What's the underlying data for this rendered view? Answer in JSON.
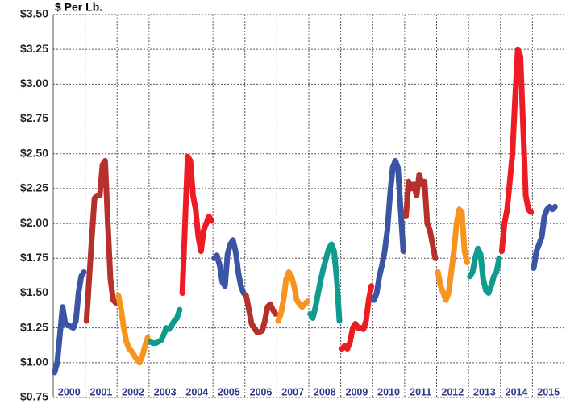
{
  "chart_data": {
    "type": "line",
    "y_label": "$ Per Lb.",
    "ylim": [
      0.75,
      3.5
    ],
    "yticks": [
      {
        "value": 0.75,
        "label": "$0.75"
      },
      {
        "value": 1.0,
        "label": "$1.00"
      },
      {
        "value": 1.25,
        "label": "$1.25"
      },
      {
        "value": 1.5,
        "label": "$1.50"
      },
      {
        "value": 1.75,
        "label": "$1.75"
      },
      {
        "value": 2.0,
        "label": "$2.00"
      },
      {
        "value": 2.25,
        "label": "$2.25"
      },
      {
        "value": 2.5,
        "label": "$2.50"
      },
      {
        "value": 2.75,
        "label": "$2.75"
      },
      {
        "value": 3.0,
        "label": "$3.00"
      },
      {
        "value": 3.25,
        "label": "$3.25"
      },
      {
        "value": 3.5,
        "label": "$3.50"
      }
    ],
    "grid": true,
    "series": [
      {
        "name": "2000",
        "color": "#3a55a4",
        "values": [
          0.93,
          1.0,
          1.2,
          1.4,
          1.28,
          1.27,
          1.26,
          1.25,
          1.3,
          1.5,
          1.62,
          1.65
        ]
      },
      {
        "name": "2001",
        "color": "#b7312c",
        "values": [
          1.3,
          1.6,
          1.9,
          2.18,
          2.2,
          2.2,
          2.42,
          2.45,
          2.0,
          1.6,
          1.45,
          1.43
        ]
      },
      {
        "name": "2002",
        "color": "#f7941d",
        "values": [
          1.48,
          1.38,
          1.25,
          1.15,
          1.1,
          1.08,
          1.05,
          1.02,
          1.0,
          1.05,
          1.12,
          1.18
        ]
      },
      {
        "name": "2003",
        "color": "#0f9b8e",
        "values": [
          1.15,
          1.14,
          1.14,
          1.15,
          1.16,
          1.2,
          1.25,
          1.24,
          1.27,
          1.3,
          1.32,
          1.38
        ]
      },
      {
        "name": "2004",
        "color": "#ed1c24",
        "values": [
          1.5,
          2.0,
          2.48,
          2.45,
          2.2,
          2.1,
          1.9,
          1.8,
          1.95,
          2.0,
          2.05,
          2.02
        ]
      },
      {
        "name": "2005",
        "color": "#3a55a4",
        "values": [
          1.75,
          1.77,
          1.7,
          1.58,
          1.55,
          1.78,
          1.85,
          1.88,
          1.8,
          1.65,
          1.55,
          1.5
        ]
      },
      {
        "name": "2006",
        "color": "#b7312c",
        "values": [
          1.48,
          1.38,
          1.28,
          1.25,
          1.22,
          1.22,
          1.23,
          1.3,
          1.4,
          1.42,
          1.38,
          1.35
        ]
      },
      {
        "name": "2007",
        "color": "#f7941d",
        "values": [
          1.3,
          1.35,
          1.45,
          1.6,
          1.65,
          1.62,
          1.55,
          1.45,
          1.42,
          1.4,
          1.42,
          1.44
        ]
      },
      {
        "name": "2008",
        "color": "#0f9b8e",
        "values": [
          1.35,
          1.32,
          1.4,
          1.5,
          1.6,
          1.68,
          1.75,
          1.82,
          1.85,
          1.8,
          1.6,
          1.3
        ]
      },
      {
        "name": "2009",
        "color": "#ed1c24",
        "values": [
          1.1,
          1.12,
          1.1,
          1.15,
          1.25,
          1.28,
          1.25,
          1.25,
          1.24,
          1.3,
          1.45,
          1.55
        ]
      },
      {
        "name": "2010",
        "color": "#3a55a4",
        "values": [
          1.45,
          1.5,
          1.62,
          1.7,
          1.8,
          1.95,
          2.2,
          2.4,
          2.45,
          2.4,
          2.1,
          1.8
        ]
      },
      {
        "name": "2011",
        "color": "#b7312c",
        "values": [
          2.05,
          2.3,
          2.25,
          2.28,
          2.2,
          2.35,
          2.28,
          2.3,
          2.0,
          1.95,
          1.85,
          1.75
        ]
      },
      {
        "name": "2012",
        "color": "#f7941d",
        "values": [
          1.65,
          1.55,
          1.5,
          1.45,
          1.5,
          1.65,
          1.8,
          2.0,
          2.1,
          2.08,
          1.8,
          1.72
        ]
      },
      {
        "name": "2013",
        "color": "#0f9b8e",
        "values": [
          1.62,
          1.65,
          1.75,
          1.82,
          1.78,
          1.6,
          1.52,
          1.5,
          1.55,
          1.62,
          1.65,
          1.75
        ]
      },
      {
        "name": "2014",
        "color": "#ed1c24",
        "values": [
          1.8,
          2.0,
          2.1,
          2.3,
          2.5,
          2.9,
          3.25,
          3.2,
          2.7,
          2.2,
          2.1,
          2.08
        ]
      },
      {
        "name": "2015",
        "color": "#3a55a4",
        "values": [
          1.68,
          1.8,
          1.85,
          1.9,
          2.05,
          2.1,
          2.12,
          2.1,
          2.12,
          null,
          null,
          null
        ]
      }
    ]
  }
}
